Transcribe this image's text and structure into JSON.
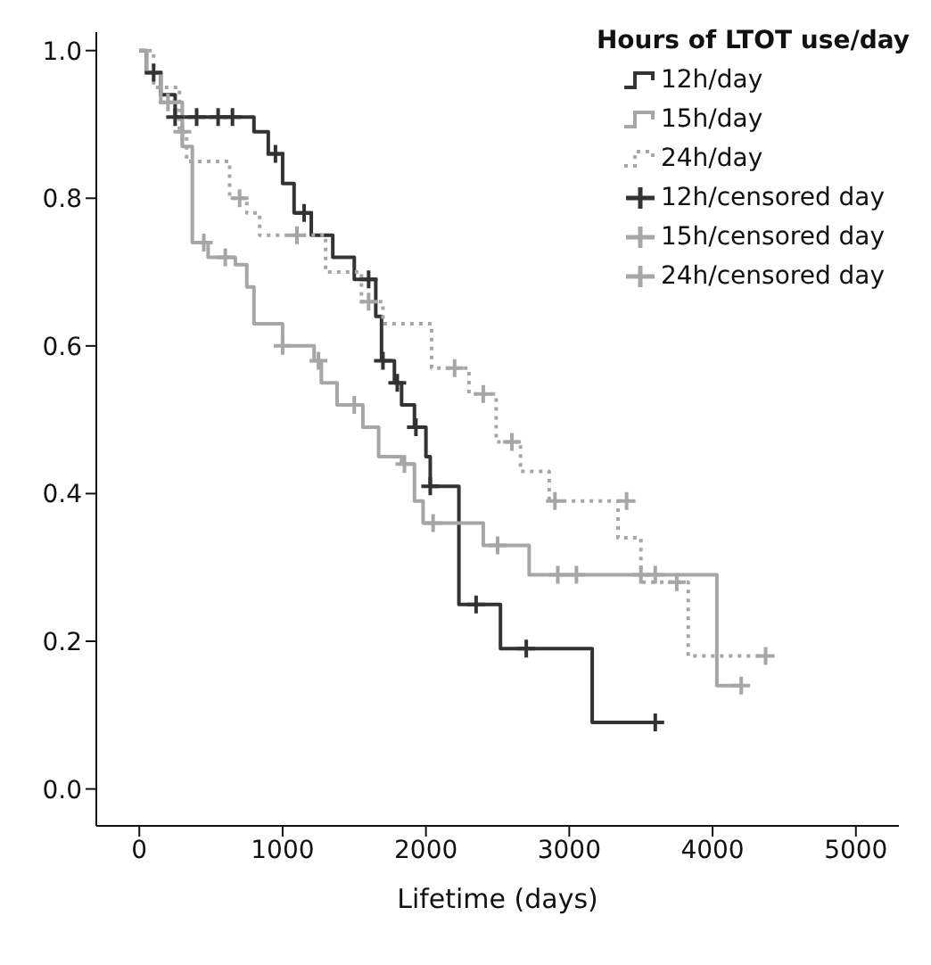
{
  "chart_data": {
    "type": "step",
    "xlabel": "Lifetime (days)",
    "legend_title": "Hours of LTOT use/day",
    "legend": "top right",
    "grid": false,
    "xlim": [
      -300,
      5300
    ],
    "xticks": [
      0,
      1000,
      2000,
      3000,
      4000,
      5000
    ],
    "ylim": [
      -0.05,
      1.025
    ],
    "yticks": [
      {
        "value": 0,
        "label": "0.0"
      },
      {
        "value": 0.2,
        "label": "0.2"
      },
      {
        "value": 0.4,
        "label": "0.4"
      },
      {
        "value": 0.6,
        "label": "0.6"
      },
      {
        "value": 0.8,
        "label": "0.8"
      },
      {
        "value": 1,
        "label": "1.0"
      }
    ],
    "series": [
      {
        "name": "12h/day",
        "color": "#333333",
        "line_style": "solid",
        "marker": "none",
        "x": [
          0,
          50,
          150,
          250,
          800,
          900,
          1000,
          1080,
          1200,
          1350,
          1500,
          1650,
          1690,
          1780,
          1830,
          1920,
          2000,
          2030,
          2230,
          2520,
          3160,
          3600
        ],
        "values": [
          1.0,
          0.97,
          0.94,
          0.91,
          0.89,
          0.86,
          0.82,
          0.78,
          0.75,
          0.72,
          0.69,
          0.64,
          0.58,
          0.55,
          0.52,
          0.49,
          0.45,
          0.41,
          0.25,
          0.19,
          0.09,
          0.09
        ]
      },
      {
        "name": "15h/day",
        "color": "#a6a6a6",
        "line_style": "solid",
        "marker": "none",
        "x": [
          0,
          50,
          150,
          300,
          370,
          480,
          670,
          750,
          800,
          1000,
          1220,
          1270,
          1380,
          1560,
          1670,
          1830,
          1920,
          1980,
          2400,
          2720,
          4030,
          4200
        ],
        "values": [
          1.0,
          0.97,
          0.93,
          0.87,
          0.74,
          0.72,
          0.71,
          0.68,
          0.63,
          0.6,
          0.58,
          0.55,
          0.52,
          0.49,
          0.45,
          0.44,
          0.39,
          0.36,
          0.33,
          0.29,
          0.14,
          0.14
        ]
      },
      {
        "name": "24h/day",
        "color": "#a6a6a6",
        "line_style": "dotted",
        "marker": "none",
        "x": [
          0,
          100,
          280,
          330,
          630,
          750,
          840,
          1300,
          1550,
          1700,
          2040,
          2300,
          2490,
          2660,
          2860,
          3340,
          3500,
          3830,
          4370
        ],
        "values": [
          1.0,
          0.95,
          0.89,
          0.85,
          0.8,
          0.78,
          0.75,
          0.7,
          0.66,
          0.63,
          0.57,
          0.535,
          0.47,
          0.43,
          0.39,
          0.34,
          0.28,
          0.18,
          0.18
        ]
      },
      {
        "name": "12h/censored day",
        "type": "scatter",
        "color": "#333333",
        "marker": "cross",
        "x": [
          100,
          250,
          400,
          550,
          650,
          950,
          1150,
          1600,
          1700,
          1800,
          1930,
          2030,
          2350,
          2700,
          3600
        ],
        "values": [
          0.97,
          0.91,
          0.91,
          0.91,
          0.91,
          0.86,
          0.78,
          0.69,
          0.58,
          0.55,
          0.49,
          0.41,
          0.25,
          0.19,
          0.09
        ]
      },
      {
        "name": "15h/censored day",
        "type": "scatter",
        "color": "#a6a6a6",
        "marker": "cross",
        "x": [
          200,
          450,
          600,
          1000,
          1250,
          1500,
          1850,
          2050,
          2500,
          2920,
          3050,
          3500,
          3600,
          4200
        ],
        "values": [
          0.93,
          0.74,
          0.72,
          0.6,
          0.58,
          0.52,
          0.44,
          0.36,
          0.33,
          0.29,
          0.29,
          0.29,
          0.29,
          0.14
        ]
      },
      {
        "name": "24h/censored day",
        "type": "scatter",
        "color": "#a6a6a6",
        "marker": "cross",
        "x": [
          300,
          700,
          1100,
          1600,
          2200,
          2400,
          2600,
          2900,
          3400,
          3750,
          4370
        ],
        "values": [
          0.89,
          0.8,
          0.75,
          0.66,
          0.57,
          0.535,
          0.47,
          0.39,
          0.39,
          0.28,
          0.18
        ]
      }
    ]
  }
}
